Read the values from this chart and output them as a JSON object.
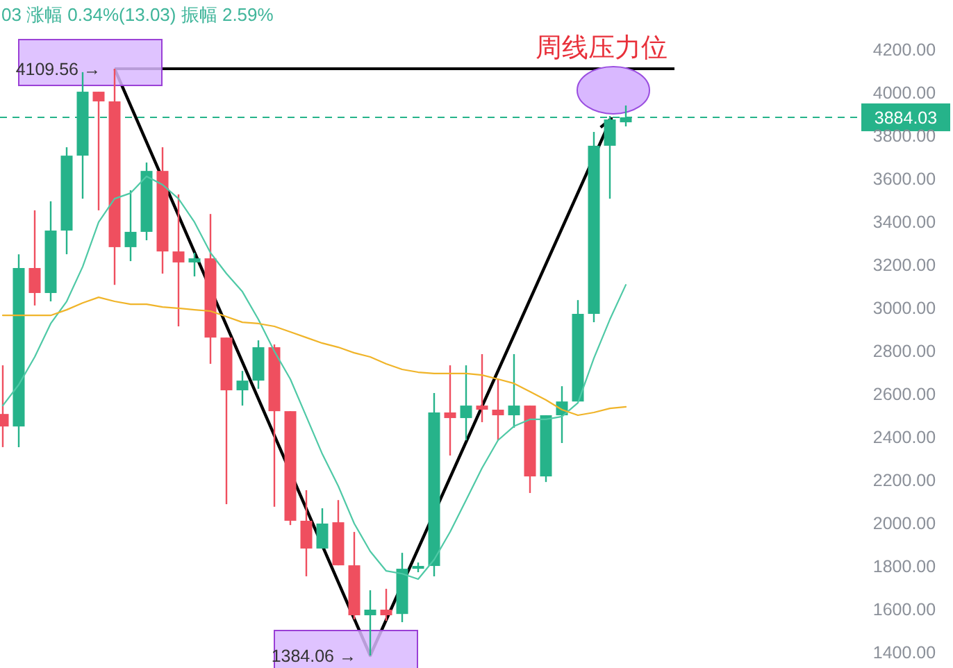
{
  "chart_data": {
    "type": "candlestick",
    "categories": [
      null,
      null,
      null,
      null,
      null,
      null,
      null,
      null,
      null,
      null,
      null,
      null,
      null,
      null,
      null,
      null,
      null,
      null,
      null,
      null,
      null,
      null,
      null,
      null,
      null,
      null,
      null,
      null,
      null,
      null,
      null,
      null,
      null,
      null,
      null,
      null,
      null,
      null,
      null,
      null
    ],
    "ylim": [
      1326,
      4200
    ],
    "yticks": [
      {
        "value": 1400,
        "label": "1400.00"
      },
      {
        "value": 1600,
        "label": "1600.00"
      },
      {
        "value": 1800,
        "label": "1800.00"
      },
      {
        "value": 2000,
        "label": "2000.00"
      },
      {
        "value": 2200,
        "label": "2200.00"
      },
      {
        "value": 2400,
        "label": "2400.00"
      },
      {
        "value": 2600,
        "label": "2600.00"
      },
      {
        "value": 2800,
        "label": "2800.00"
      },
      {
        "value": 3000,
        "label": "3000.00"
      },
      {
        "value": 3200,
        "label": "3200.00"
      },
      {
        "value": 3400,
        "label": "3400.00"
      },
      {
        "value": 3600,
        "label": "3600.00"
      },
      {
        "value": 3800,
        "label": "3800.00"
      },
      {
        "value": 4000,
        "label": "4000.00"
      },
      {
        "value": 4200,
        "label": "4200.00"
      }
    ],
    "tick_labels": "y",
    "ohlc": [
      [
        2506,
        2732,
        2352,
        2448
      ],
      [
        2448,
        3248,
        2352,
        3184
      ],
      [
        3184,
        3452,
        3010,
        3068
      ],
      [
        3068,
        3494,
        3029,
        3358
      ],
      [
        3358,
        3745,
        3248,
        3706
      ],
      [
        3706,
        4094,
        3506,
        4003
      ],
      [
        4003,
        4003,
        3452,
        3958
      ],
      [
        3958,
        4109.56,
        3106,
        3281
      ],
      [
        3281,
        3545,
        3216,
        3352
      ],
      [
        3352,
        3674,
        3313,
        3635
      ],
      [
        3635,
        3745,
        3158,
        3261
      ],
      [
        3261,
        3526,
        2913,
        3210
      ],
      [
        3210,
        3255,
        3145,
        3229
      ],
      [
        3229,
        3435,
        2739,
        2861
      ],
      [
        2861,
        2861,
        2087,
        2616
      ],
      [
        2616,
        2706,
        2545,
        2661
      ],
      [
        2661,
        2848,
        2623,
        2816
      ],
      [
        2816,
        2829,
        2075,
        2519
      ],
      [
        2519,
        2519,
        1990,
        2010
      ],
      [
        2010,
        2152,
        1752,
        1881
      ],
      [
        1881,
        2068,
        1881,
        1997
      ],
      [
        2003,
        2106,
        1803,
        1803
      ],
      [
        1803,
        1958,
        1552,
        1571
      ],
      [
        1571,
        1687,
        1384.06,
        1597
      ],
      [
        1597,
        1694,
        1545,
        1571
      ],
      [
        1577,
        1861,
        1539,
        1787
      ],
      [
        1787,
        1816,
        1771,
        1800
      ],
      [
        1800,
        2603,
        1752,
        2513
      ],
      [
        2513,
        2732,
        2313,
        2487
      ],
      [
        2487,
        2732,
        2384,
        2545
      ],
      [
        2545,
        2784,
        2468,
        2526
      ],
      [
        2526,
        2668,
        2384,
        2500
      ],
      [
        2500,
        2784,
        2442,
        2545
      ],
      [
        2545,
        2545,
        2139,
        2216
      ],
      [
        2216,
        2500,
        2190,
        2500
      ],
      [
        2500,
        2635,
        2371,
        2564
      ],
      [
        2564,
        3035,
        2564,
        2971
      ],
      [
        2971,
        3816,
        2932,
        3752
      ],
      [
        3752,
        3890,
        3506,
        3874
      ],
      [
        3861,
        3939,
        3842,
        3884.03
      ]
    ],
    "colors": [
      "#ef4f5f",
      "#26b38a",
      "#ef4f5f",
      "#26b38a",
      "#26b38a",
      "#26b38a",
      "#ef4f5f",
      "#ef4f5f",
      "#26b38a",
      "#26b38a",
      "#ef4f5f",
      "#ef4f5f",
      "#26b38a",
      "#ef4f5f",
      "#ef4f5f",
      "#26b38a",
      "#26b38a",
      "#ef4f5f",
      "#ef4f5f",
      "#ef4f5f",
      "#26b38a",
      "#ef4f5f",
      "#ef4f5f",
      "#26b38a",
      "#ef4f5f",
      "#26b38a",
      "#26b38a",
      "#26b38a",
      "#ef4f5f",
      "#26b38a",
      "#ef4f5f",
      "#ef4f5f",
      "#26b38a",
      "#ef4f5f",
      "#26b38a",
      "#26b38a",
      "#26b38a",
      "#26b38a",
      "#26b38a",
      "#26b38a"
    ],
    "series": [
      {
        "type": "line",
        "color": "#4fc9a6",
        "values": [
          2545,
          2642,
          2771,
          2926,
          3029,
          3190,
          3397,
          3506,
          3532,
          3610,
          3571,
          3506,
          3397,
          3255,
          3158,
          3074,
          2945,
          2797,
          2668,
          2494,
          2320,
          2171,
          1997,
          1868,
          1777,
          1764,
          1739,
          1829,
          1958,
          2106,
          2255,
          2384,
          2449,
          2481,
          2481,
          2494,
          2558,
          2765,
          2945,
          3106
        ]
      },
      {
        "type": "line",
        "color": "#f0b429",
        "values": [
          2964,
          2964,
          2964,
          2964,
          2990,
          3022,
          3048,
          3029,
          3016,
          3016,
          3003,
          2997,
          2990,
          2984,
          2958,
          2932,
          2926,
          2913,
          2887,
          2861,
          2835,
          2816,
          2790,
          2771,
          2739,
          2713,
          2700,
          2694,
          2694,
          2694,
          2687,
          2668,
          2648,
          2610,
          2571,
          2526,
          2500,
          2513,
          2532,
          2539
        ]
      }
    ],
    "ref_lines": [
      {
        "axis": "y",
        "value": 3884.03,
        "label": "3884.03",
        "color": "#26b38a",
        "line_style": "dashed"
      },
      {
        "axis": "y",
        "value": 4109.56,
        "label": "周线压力位",
        "color": "#000000",
        "line_style": "solid"
      }
    ],
    "annotations": [
      "03 涨幅 0.34%(13.03) 振幅 2.59%",
      "4109.56 →",
      "1384.06 →"
    ]
  }
}
